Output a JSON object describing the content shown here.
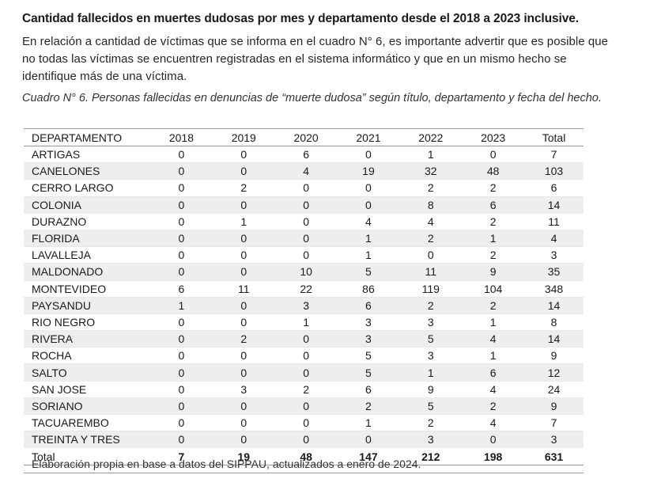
{
  "heading": "Cantidad fallecidos en muertes dudosas por mes y departamento desde el 2018 a 2023 inclusive.",
  "intro": "En relación a cantidad de víctimas que se informa en el cuadro N° 6, es importante advertir que es posible que no todas las víctimas se encuentren registradas en el sistema informático y que en un mismo hecho se identifique más de una víctima.",
  "caption": "Cuadro N° 6. Personas fallecidas en denuncias de “muerte dudosa” según título, departamento y fecha del hecho.",
  "table": {
    "headers": [
      "DEPARTAMENTO",
      "2018",
      "2019",
      "2020",
      "2021",
      "2022",
      "2023",
      "Total"
    ],
    "rows": [
      [
        "ARTIGAS",
        "0",
        "0",
        "6",
        "0",
        "1",
        "0",
        "7"
      ],
      [
        "CANELONES",
        "0",
        "0",
        "4",
        "19",
        "32",
        "48",
        "103"
      ],
      [
        "CERRO LARGO",
        "0",
        "2",
        "0",
        "0",
        "2",
        "2",
        "6"
      ],
      [
        "COLONIA",
        "0",
        "0",
        "0",
        "0",
        "8",
        "6",
        "14"
      ],
      [
        "DURAZNO",
        "0",
        "1",
        "0",
        "4",
        "4",
        "2",
        "11"
      ],
      [
        "FLORIDA",
        "0",
        "0",
        "0",
        "1",
        "2",
        "1",
        "4"
      ],
      [
        "LAVALLEJA",
        "0",
        "0",
        "0",
        "1",
        "0",
        "2",
        "3"
      ],
      [
        "MALDONADO",
        "0",
        "0",
        "10",
        "5",
        "11",
        "9",
        "35"
      ],
      [
        "MONTEVIDEO",
        "6",
        "11",
        "22",
        "86",
        "119",
        "104",
        "348"
      ],
      [
        "PAYSANDU",
        "1",
        "0",
        "3",
        "6",
        "2",
        "2",
        "14"
      ],
      [
        "RIO NEGRO",
        "0",
        "0",
        "1",
        "3",
        "3",
        "1",
        "8"
      ],
      [
        "RIVERA",
        "0",
        "2",
        "0",
        "3",
        "5",
        "4",
        "14"
      ],
      [
        "ROCHA",
        "0",
        "0",
        "0",
        "5",
        "3",
        "1",
        "9"
      ],
      [
        "SALTO",
        "0",
        "0",
        "0",
        "5",
        "1",
        "6",
        "12"
      ],
      [
        "SAN JOSE",
        "0",
        "3",
        "2",
        "6",
        "9",
        "4",
        "24"
      ],
      [
        "SORIANO",
        "0",
        "0",
        "0",
        "2",
        "5",
        "2",
        "9"
      ],
      [
        "TACUAREMBO",
        "0",
        "0",
        "0",
        "1",
        "2",
        "4",
        "7"
      ],
      [
        "TREINTA Y TRES",
        "0",
        "0",
        "0",
        "0",
        "3",
        "0",
        "3"
      ]
    ],
    "totals": [
      "Total",
      "7",
      "19",
      "48",
      "147",
      "212",
      "198",
      "631"
    ]
  },
  "source": "Elaboración propia en base a datos del SIPPAU, actualizados a enero de 2024."
}
